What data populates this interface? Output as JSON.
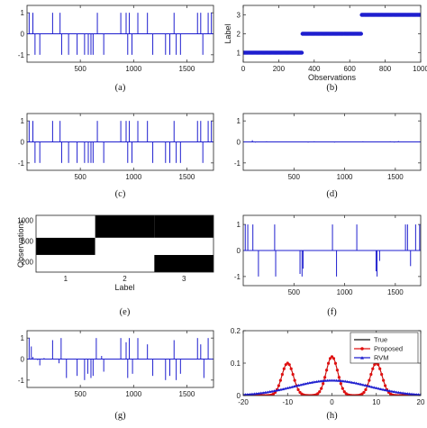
{
  "colors": {
    "blue": "#1f1fcf",
    "red": "#e01010",
    "black": "#111111",
    "axis": "#222222"
  },
  "chart_data": [
    {
      "id": "a",
      "caption": "(a)",
      "type": "line",
      "xlim": [
        0,
        1750
      ],
      "ylim": [
        -1.35,
        1.35
      ],
      "xticks": [
        500,
        1000,
        1500
      ],
      "yticks": [
        -1,
        0,
        1
      ],
      "spikes": [
        [
          20,
          1
        ],
        [
          55,
          1
        ],
        [
          75,
          -1
        ],
        [
          120,
          -1
        ],
        [
          240,
          1
        ],
        [
          310,
          1
        ],
        [
          325,
          -1
        ],
        [
          390,
          -1
        ],
        [
          470,
          -1
        ],
        [
          540,
          -1
        ],
        [
          575,
          -1
        ],
        [
          600,
          -1
        ],
        [
          620,
          -1
        ],
        [
          660,
          1
        ],
        [
          720,
          -1
        ],
        [
          880,
          1
        ],
        [
          930,
          1
        ],
        [
          945,
          -1
        ],
        [
          960,
          1
        ],
        [
          985,
          -1
        ],
        [
          1040,
          1
        ],
        [
          1130,
          1
        ],
        [
          1180,
          -1
        ],
        [
          1300,
          -1
        ],
        [
          1340,
          -1
        ],
        [
          1380,
          1
        ],
        [
          1400,
          -1
        ],
        [
          1440,
          -1
        ],
        [
          1600,
          1
        ],
        [
          1630,
          1
        ],
        [
          1650,
          -1
        ],
        [
          1700,
          1
        ],
        [
          1730,
          1
        ]
      ]
    },
    {
      "id": "b",
      "caption": "(b)",
      "type": "scatter",
      "xlabel": "Observations",
      "ylabel": "Label",
      "xlim": [
        0,
        1000
      ],
      "ylim": [
        0.5,
        3.5
      ],
      "xticks": [
        0,
        200,
        400,
        600,
        800,
        1000
      ],
      "yticks": [
        1,
        2,
        3
      ],
      "segments": [
        {
          "x": [
            0,
            333
          ],
          "y": 1
        },
        {
          "x": [
            334,
            667
          ],
          "y": 2
        },
        {
          "x": [
            668,
            1000
          ],
          "y": 3
        }
      ]
    },
    {
      "id": "c",
      "caption": "(c)",
      "type": "line",
      "xlim": [
        0,
        1750
      ],
      "ylim": [
        -1.35,
        1.35
      ],
      "xticks": [
        500,
        1000,
        1500
      ],
      "yticks": [
        -1,
        0,
        1
      ],
      "spikes": [
        [
          20,
          1
        ],
        [
          55,
          1
        ],
        [
          75,
          -1
        ],
        [
          120,
          -1
        ],
        [
          240,
          1
        ],
        [
          310,
          1
        ],
        [
          325,
          -1
        ],
        [
          390,
          -1
        ],
        [
          470,
          -1
        ],
        [
          540,
          -1
        ],
        [
          575,
          -1
        ],
        [
          600,
          -1
        ],
        [
          620,
          -1
        ],
        [
          660,
          1
        ],
        [
          720,
          -1
        ],
        [
          880,
          1
        ],
        [
          930,
          1
        ],
        [
          945,
          -1
        ],
        [
          960,
          1
        ],
        [
          985,
          -1
        ],
        [
          1040,
          1
        ],
        [
          1130,
          1
        ],
        [
          1180,
          -1
        ],
        [
          1300,
          -1
        ],
        [
          1340,
          -1
        ],
        [
          1380,
          1
        ],
        [
          1400,
          -1
        ],
        [
          1440,
          -1
        ],
        [
          1600,
          1
        ],
        [
          1630,
          1
        ],
        [
          1650,
          -1
        ],
        [
          1700,
          1
        ],
        [
          1730,
          1
        ]
      ]
    },
    {
      "id": "d",
      "caption": "(d)",
      "type": "line",
      "xlim": [
        0,
        1750
      ],
      "ylim": [
        -1.35,
        1.35
      ],
      "xticks": [
        500,
        1000,
        1500
      ],
      "yticks": [
        -1,
        0,
        1
      ],
      "spikes": [
        [
          90,
          0.08
        ],
        [
          120,
          -0.03
        ],
        [
          230,
          0.03
        ],
        [
          330,
          -0.02
        ],
        [
          420,
          0.02
        ],
        [
          640,
          -0.03
        ],
        [
          700,
          0.03
        ],
        [
          900,
          -0.03
        ],
        [
          980,
          0.02
        ],
        [
          1060,
          -0.02
        ],
        [
          1180,
          0.03
        ],
        [
          1320,
          -0.02
        ],
        [
          1450,
          0.03
        ],
        [
          1490,
          -0.03
        ],
        [
          1530,
          0.04
        ],
        [
          1580,
          -0.02
        ]
      ]
    },
    {
      "id": "e",
      "caption": "(e)",
      "type": "heatmap",
      "xlabel": "Label",
      "ylabel": "Observations",
      "xlim": [
        0.5,
        3.5
      ],
      "ylim": [
        0,
        1100
      ],
      "xticks": [
        1,
        2,
        3
      ],
      "yticks": [
        200,
        600,
        1000
      ],
      "cells": [
        {
          "label": 1,
          "y": [
            0,
            333
          ],
          "value": 1
        },
        {
          "label": 1,
          "y": [
            333,
            667
          ],
          "value": 0
        },
        {
          "label": 1,
          "y": [
            667,
            1100
          ],
          "value": 1
        },
        {
          "label": 2,
          "y": [
            0,
            333
          ],
          "value": 1
        },
        {
          "label": 2,
          "y": [
            333,
            667
          ],
          "value": 1
        },
        {
          "label": 2,
          "y": [
            667,
            1100
          ],
          "value": 0
        },
        {
          "label": 3,
          "y": [
            0,
            333
          ],
          "value": 0
        },
        {
          "label": 3,
          "y": [
            333,
            667
          ],
          "value": 1
        },
        {
          "label": 3,
          "y": [
            667,
            1100
          ],
          "value": 0
        }
      ]
    },
    {
      "id": "f",
      "caption": "(f)",
      "type": "line",
      "xlim": [
        0,
        1750
      ],
      "ylim": [
        -1.35,
        1.35
      ],
      "xticks": [
        500,
        1000,
        1500
      ],
      "yticks": [
        -1,
        0,
        1
      ],
      "spikes": [
        [
          20,
          1
        ],
        [
          45,
          1
        ],
        [
          95,
          1
        ],
        [
          150,
          -1
        ],
        [
          310,
          1
        ],
        [
          320,
          -1
        ],
        [
          560,
          -0.9
        ],
        [
          580,
          -1
        ],
        [
          590,
          -0.7
        ],
        [
          880,
          1
        ],
        [
          920,
          -1
        ],
        [
          1120,
          1
        ],
        [
          1310,
          -0.8
        ],
        [
          1320,
          -1
        ],
        [
          1345,
          -0.4
        ],
        [
          1600,
          1
        ],
        [
          1620,
          1
        ],
        [
          1650,
          -0.6
        ],
        [
          1700,
          1
        ],
        [
          1740,
          1
        ]
      ]
    },
    {
      "id": "g",
      "caption": "(g)",
      "type": "line",
      "xlim": [
        0,
        1750
      ],
      "ylim": [
        -1.35,
        1.35
      ],
      "xticks": [
        500,
        1000,
        1500
      ],
      "yticks": [
        -1,
        0,
        1
      ],
      "spikes": [
        [
          20,
          1
        ],
        [
          40,
          0.6
        ],
        [
          55,
          0.1
        ],
        [
          100,
          -0.05
        ],
        [
          120,
          -0.3
        ],
        [
          160,
          0.05
        ],
        [
          240,
          0.9
        ],
        [
          300,
          -0.2
        ],
        [
          320,
          1
        ],
        [
          370,
          -0.9
        ],
        [
          470,
          -0.8
        ],
        [
          540,
          -1
        ],
        [
          570,
          -0.7
        ],
        [
          600,
          -0.9
        ],
        [
          620,
          -0.8
        ],
        [
          650,
          1
        ],
        [
          700,
          0.15
        ],
        [
          720,
          -0.6
        ],
        [
          880,
          1
        ],
        [
          930,
          0.8
        ],
        [
          945,
          -0.9
        ],
        [
          960,
          1
        ],
        [
          990,
          -0.7
        ],
        [
          1040,
          1
        ],
        [
          1130,
          0.7
        ],
        [
          1180,
          -0.8
        ],
        [
          1300,
          -1
        ],
        [
          1340,
          -0.8
        ],
        [
          1380,
          0.9
        ],
        [
          1400,
          -1
        ],
        [
          1440,
          -0.7
        ],
        [
          1600,
          1
        ],
        [
          1630,
          0.7
        ],
        [
          1660,
          -0.9
        ],
        [
          1700,
          1
        ]
      ]
    },
    {
      "id": "h",
      "caption": "(h)",
      "type": "line",
      "xlim": [
        -20,
        20
      ],
      "ylim": [
        0,
        0.2
      ],
      "xticks": [
        -20,
        -10,
        0,
        10,
        20
      ],
      "yticks": [
        0,
        0.1,
        0.2
      ],
      "legend_position": "top-right",
      "series": [
        {
          "name": "True",
          "color": "#111111",
          "kind": "trimodal",
          "centers": [
            -10,
            0,
            10
          ],
          "sigma": 1.3,
          "peaks": [
            0.1,
            0.12,
            0.1
          ]
        },
        {
          "name": "Proposed",
          "color": "#e01010",
          "kind": "trimodal",
          "centers": [
            -10,
            0,
            10
          ],
          "sigma": 1.3,
          "peaks": [
            0.1,
            0.12,
            0.1
          ]
        },
        {
          "name": "RVM",
          "color": "#1f1fcf",
          "kind": "gaussian",
          "mean": 0,
          "sigma": 8.5,
          "peak": 0.047
        }
      ],
      "tick_labels_x": [
        "-20",
        "-10",
        "0",
        "10",
        "20"
      ]
    }
  ]
}
